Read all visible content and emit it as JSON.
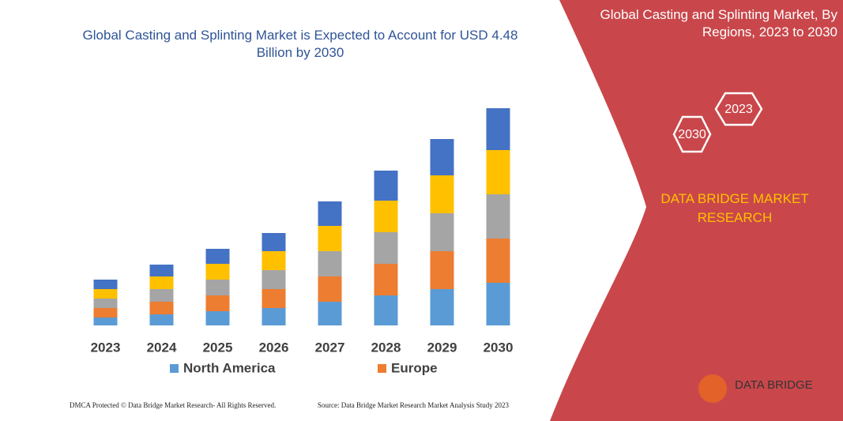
{
  "chart_data": {
    "type": "stacked-bar",
    "title": "Global Casting and Splinting Market is Expected to Account for USD 4.48 Billion by 2030",
    "categories": [
      "2023",
      "2024",
      "2025",
      "2026",
      "2027",
      "2028",
      "2029",
      "2030"
    ],
    "series": [
      {
        "name": "North America",
        "color": "#5b9bd5",
        "values": [
          10,
          14,
          18,
          22,
          30,
          38,
          46,
          54
        ]
      },
      {
        "name": "Europe",
        "color": "#ed7d31",
        "values": [
          12,
          16,
          20,
          24,
          32,
          40,
          48,
          56
        ]
      },
      {
        "color": "#a5a5a5",
        "values": [
          12,
          16,
          20,
          24,
          32,
          40,
          48,
          56
        ]
      },
      {
        "color": "#ffc000",
        "values": [
          12,
          16,
          20,
          24,
          32,
          40,
          48,
          56
        ]
      },
      {
        "color": "#4472c4",
        "values": [
          12,
          15,
          19,
          23,
          31,
          38,
          46,
          53
        ]
      }
    ],
    "ylim": [
      0,
      275
    ]
  },
  "panel": {
    "title": "Global Casting and Splinting Market, By Regions, 2023 to 2030",
    "hex_large": "2030",
    "hex_small": "2023",
    "brand": "DATA BRIDGE MARKET RESEARCH",
    "logo": "DATA BRIDGE"
  },
  "footer": {
    "left": "DMCA Protected © Data Bridge Market Research-  All Rights Reserved.",
    "right": "Source: Data Bridge Market Research  Market Analysis Study 2023"
  }
}
